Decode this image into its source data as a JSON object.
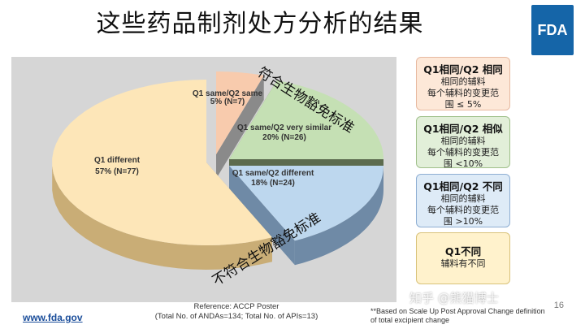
{
  "title": "这些药品制剂处方分析的结果",
  "logo_text": "FDA",
  "slide_number": "16",
  "footer_url": "www.fda.gov",
  "reference_line1": "Reference: ACCP Poster",
  "reference_line2": "(Total No. of ANDAs=134; Total No. of APIs=13)",
  "note_line1": "**Based on Scale Up Post Approval Change definition",
  "note_line2": "of total excipient change",
  "annotations": {
    "top": "符合生物豁免标准",
    "bottom": "不符合生物豁免标准"
  },
  "watermark": "知乎 @熊猫博士",
  "legend_boxes": [
    {
      "title": "Q1相同/Q2 相同",
      "lines": [
        "相同的辅料",
        "每个辅料的变更范",
        "围 ≤ 5%"
      ],
      "bg": "#fde8d8",
      "border": "#e7b9a0"
    },
    {
      "title": "Q1相同/Q2 相似",
      "lines": [
        "相同的辅料",
        "每个辅料的变更范",
        "围 <10%"
      ],
      "bg": "#e2efd9",
      "border": "#9fc08a"
    },
    {
      "title": "Q1相同/Q2 不同",
      "lines": [
        "相同的辅料",
        "每个辅料的变更范",
        "围 >10%"
      ],
      "bg": "#deebf7",
      "border": "#8eaed3"
    },
    {
      "title": "Q1不同",
      "lines": [
        "辅料有不同"
      ],
      "bg": "#fff2cc",
      "border": "#d9c27a"
    }
  ],
  "chart_data": {
    "type": "pie",
    "slices": [
      {
        "label_line1": "Q1 same/Q2 same",
        "label_line2": "5% (N=7)",
        "percent": 5,
        "n": 7,
        "color": "#f8cbad",
        "side_color": "#8a8a8a"
      },
      {
        "label_line1": "Q1 same/Q2 very similar",
        "label_line2": "20% (N=26)",
        "percent": 20,
        "n": 26,
        "color": "#c5e0b4",
        "side_color": "#5c6b4e"
      },
      {
        "label_line1": "Q1 same/Q2 different",
        "label_line2": "18% (N=24)",
        "percent": 18,
        "n": 24,
        "color": "#bdd7ee",
        "side_color": "#6f8aa6"
      },
      {
        "label_line1": "Q1 different",
        "label_line2": "57% (N=77)",
        "percent": 57,
        "n": 77,
        "color": "#fde6b8",
        "side_color": "#c9ad76"
      }
    ]
  }
}
